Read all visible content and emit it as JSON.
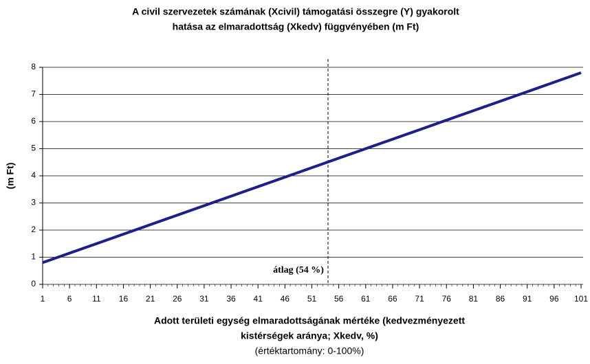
{
  "chart_data": {
    "type": "line",
    "title": [
      "A civil szervezetek számának (Xcivil) támogatási összegre (Y) gyakorolt",
      "hatása az elmaradottság (Xkedv) függvényében (m Ft)"
    ],
    "x_label": [
      "Adott területi egység elmaradottságának mértéke (kedvezményezett",
      "kistérségek aránya; Xkedv, %)",
      "(értéktartomány: 0-100%)"
    ],
    "y_label": "(m Ft)",
    "x": [
      1,
      101
    ],
    "series": [
      {
        "name": "Y",
        "color": "#1f1f8a",
        "values": [
          0.8,
          7.8
        ]
      }
    ],
    "xlim": [
      1,
      101
    ],
    "xticks": [
      1,
      6,
      11,
      16,
      21,
      26,
      31,
      36,
      41,
      46,
      51,
      56,
      61,
      66,
      71,
      76,
      81,
      86,
      91,
      96,
      101
    ],
    "ylim": [
      0,
      8
    ],
    "yticks": [
      0,
      1,
      2,
      3,
      4,
      5,
      6,
      7,
      8
    ],
    "grid": true,
    "annotation": {
      "x": 54,
      "text": "átlag (54 %)"
    }
  }
}
